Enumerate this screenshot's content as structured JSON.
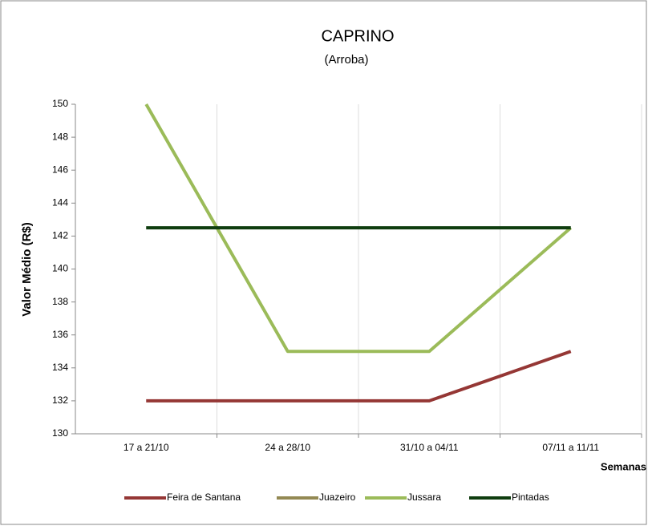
{
  "chart_data": {
    "type": "line",
    "title": "CAPRINO",
    "subtitle": "(Arroba)",
    "y_label": "Valor Médio (R$)",
    "x_label": "Semanas",
    "categories": [
      "17 a 21/10",
      "24 a 28/10",
      "31/10 a 04/11",
      "07/11 a 11/11"
    ],
    "series": [
      {
        "name": "Feira de Santana",
        "color": "#953735",
        "values": [
          132,
          132,
          132,
          135
        ]
      },
      {
        "name": "Juazeiro",
        "color": "#938953",
        "values": [
          null,
          null,
          null,
          null
        ]
      },
      {
        "name": "Jussara",
        "color": "#9bbb59",
        "values": [
          150,
          135,
          135,
          142.5
        ]
      },
      {
        "name": "Pintadas",
        "color": "#0f3d0f",
        "values": [
          142.5,
          142.5,
          142.5,
          142.5
        ]
      }
    ],
    "ylim": [
      130,
      150
    ],
    "yticks": [
      130,
      132,
      134,
      136,
      138,
      140,
      142,
      144,
      146,
      148,
      150
    ],
    "grid": "x",
    "legend": "bottom"
  }
}
